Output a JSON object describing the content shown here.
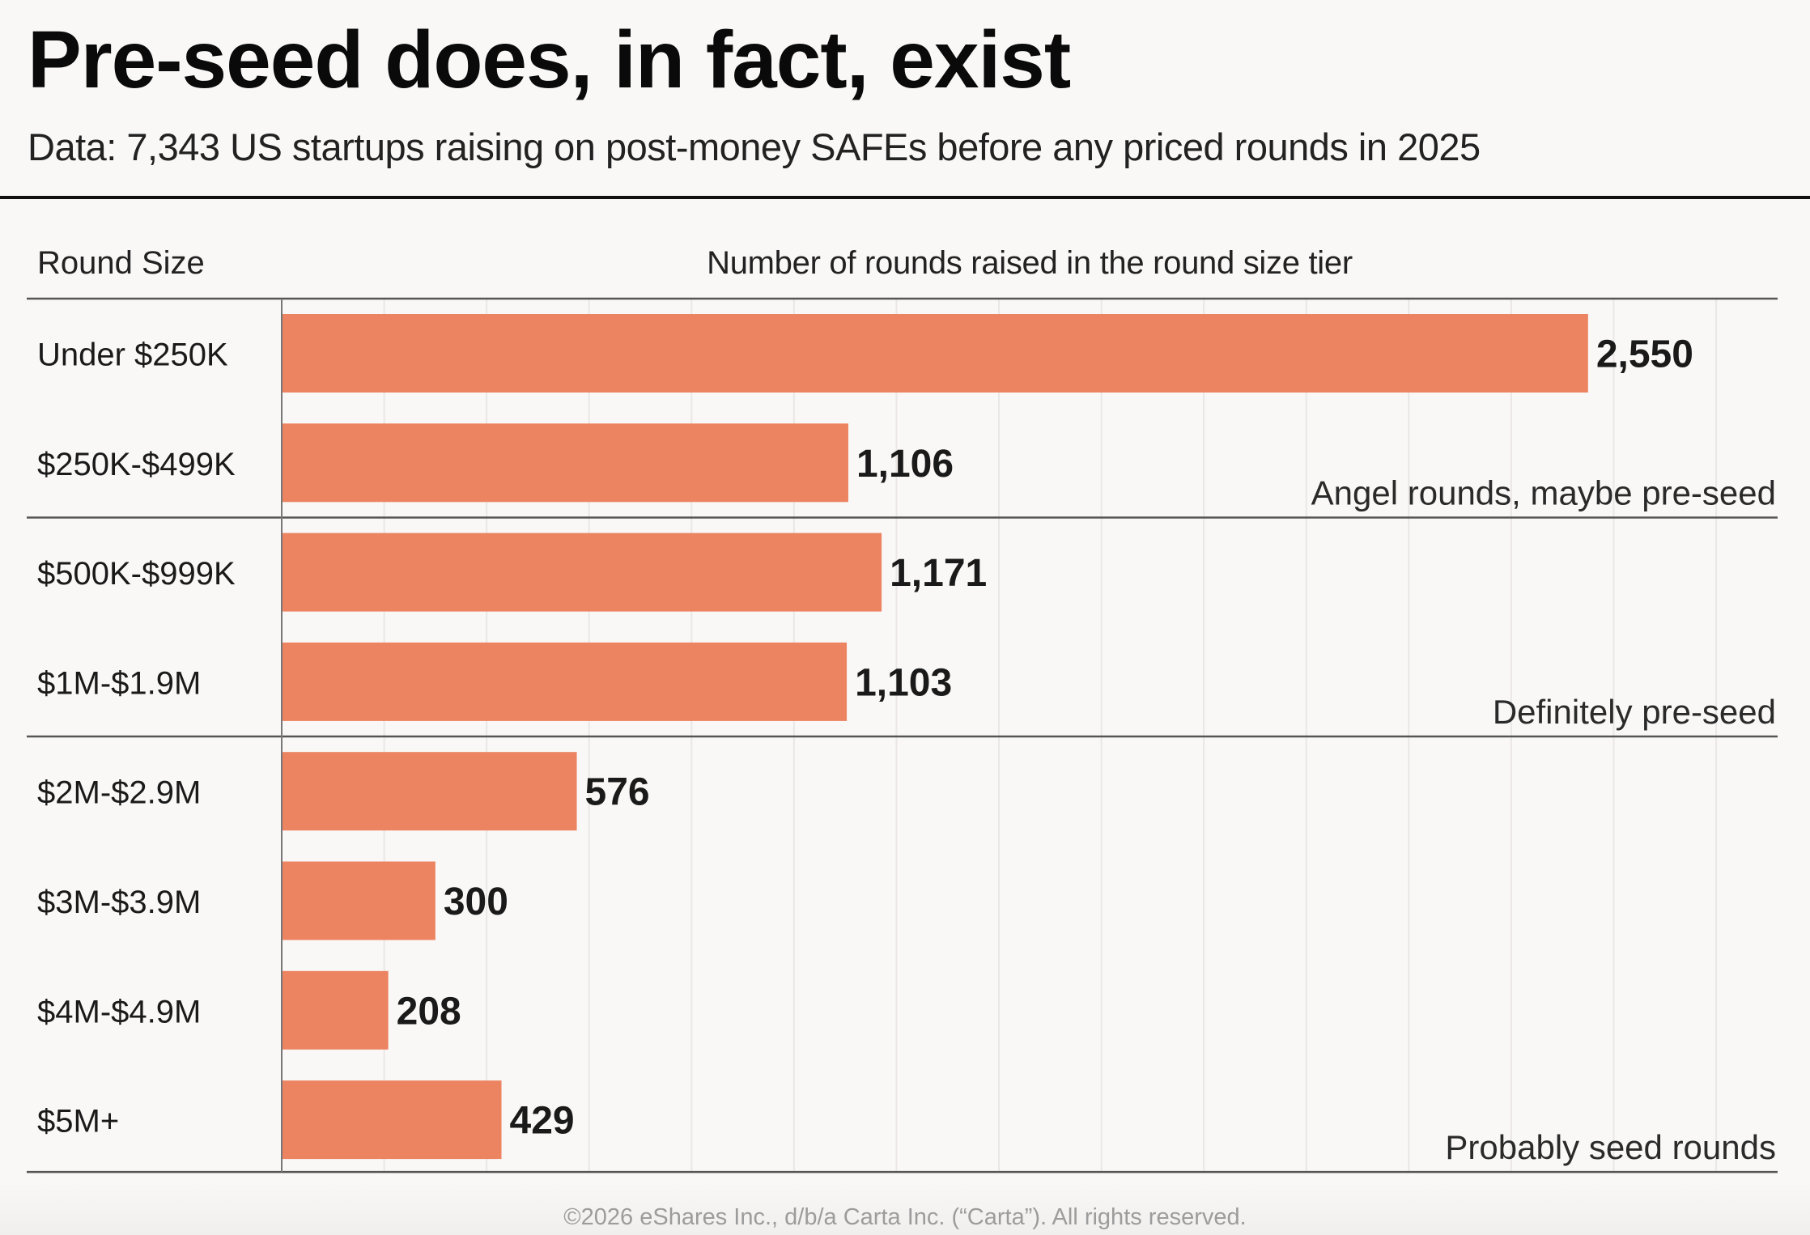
{
  "title": "Pre-seed does, in fact, exist",
  "subtitle": "Data: 7,343 US startups raising on post-money SAFEs before any priced rounds in 2025",
  "footer": "©2026 eShares Inc., d/b/a Carta Inc. (“Carta”). All rights reserved.",
  "colors": {
    "bar": "#EC8461",
    "text": "#111111",
    "grid": "#EAE7E5",
    "rule": "#555555"
  },
  "chart_data": {
    "type": "bar",
    "orientation": "horizontal",
    "title": "Pre-seed does, in fact, exist",
    "subtitle": "Data: 7,343 US startups raising on post-money SAFEs before any priced rounds in 2025",
    "row_header": "Round Size",
    "value_header": "Number of rounds raised in the round size tier",
    "xlabel": "Number of rounds raised in the round size tier",
    "ylabel": "Round Size",
    "categories": [
      "Under $250K",
      "$250K-$499K",
      "$500K-$999K",
      "$1M-$1.9M",
      "$2M-$2.9M",
      "$3M-$3.9M",
      "$4M-$4.9M",
      "$5M+"
    ],
    "values": [
      2550,
      1106,
      1171,
      1103,
      576,
      300,
      208,
      429
    ],
    "value_labels": [
      "2,550",
      "1,106",
      "1,171",
      "1,103",
      "576",
      "300",
      "208",
      "429"
    ],
    "xlim": [
      0,
      2920
    ],
    "grid": true,
    "grid_step": 200,
    "groups": [
      {
        "label": "Angel rounds, maybe pre-seed",
        "rows": [
          0,
          1
        ]
      },
      {
        "label": "Definitely pre-seed",
        "rows": [
          2,
          3
        ]
      },
      {
        "label": "Probably seed rounds",
        "rows": [
          4,
          5,
          6,
          7
        ]
      }
    ]
  }
}
